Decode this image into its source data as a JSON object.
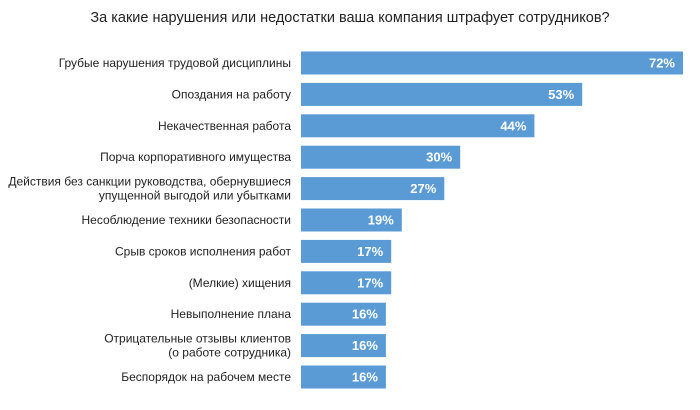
{
  "chart_data": {
    "type": "bar",
    "orientation": "horizontal",
    "title": "За какие нарушения или недостатки ваша компания штрафует сотрудников?",
    "categories": [
      [
        "Грубые нарушения трудовой дисциплины"
      ],
      [
        "Опоздания на работу"
      ],
      [
        "Некачественная работа"
      ],
      [
        "Порча корпоративного имущества"
      ],
      [
        "Действия без санкции руководства, обернувшиеся",
        "упущенной выгодой или убытками"
      ],
      [
        "Несоблюдение техники безопасности"
      ],
      [
        "Срыв сроков исполнения работ"
      ],
      [
        "(Мелкие) хищения"
      ],
      [
        "Невыполнение плана"
      ],
      [
        "Отрицательные отзывы клиентов",
        "(о работе сотрудника)"
      ],
      [
        "Беспорядок на рабочем месте"
      ]
    ],
    "values": [
      72,
      53,
      44,
      30,
      27,
      19,
      17,
      17,
      16,
      16,
      16
    ],
    "value_labels": [
      "72%",
      "53%",
      "44%",
      "30%",
      "27%",
      "19%",
      "17%",
      "17%",
      "16%",
      "16%",
      "16%"
    ],
    "unit": "%",
    "xlim": [
      0,
      72
    ],
    "bar_color": "#5b9bd5",
    "value_label_color": "#ffffff",
    "grid": false,
    "legend": "none"
  }
}
